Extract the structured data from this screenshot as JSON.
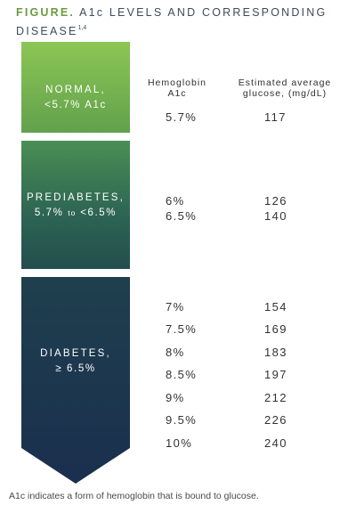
{
  "title": {
    "figure_label": "FIGURE.",
    "text_line1": "A1c LEVELS AND CORRESPONDING",
    "text_line2": "DISEASE",
    "refs": "1,4"
  },
  "headers": {
    "a1c": [
      "Hemoglobin",
      "A1c"
    ],
    "glucose": [
      "Estimated average",
      "glucose, (mg/dL)"
    ]
  },
  "categories": [
    {
      "name": "NORMAL,",
      "range": "<5.7% A1c",
      "color_top": "#8cc654",
      "color_bottom": "#62a14d",
      "rows": [
        {
          "a1c": "5.7%",
          "glucose": "117"
        }
      ]
    },
    {
      "name": "PREDIABETES,",
      "range_prefix": "5.7%",
      "range_to": "to",
      "range_suffix": "<6.5%",
      "color_top": "#4a8f55",
      "color_bottom": "#244e4e",
      "rows": [
        {
          "a1c": "6%",
          "glucose": "126"
        },
        {
          "a1c": "6.5%",
          "glucose": "140"
        }
      ]
    },
    {
      "name": "DIABETES,",
      "range": "≥ 6.5%",
      "color_top": "#1f3f4e",
      "color_bottom": "#1a2f4e",
      "rows": [
        {
          "a1c": "7%",
          "glucose": "154"
        },
        {
          "a1c": "7.5%",
          "glucose": "169"
        },
        {
          "a1c": "8%",
          "glucose": "183"
        },
        {
          "a1c": "8.5%",
          "glucose": "197"
        },
        {
          "a1c": "9%",
          "glucose": "212"
        },
        {
          "a1c": "9.5%",
          "glucose": "226"
        },
        {
          "a1c": "10%",
          "glucose": "240"
        }
      ]
    }
  ],
  "footnote": "A1c indicates a form of hemoglobin that is bound to glucose."
}
